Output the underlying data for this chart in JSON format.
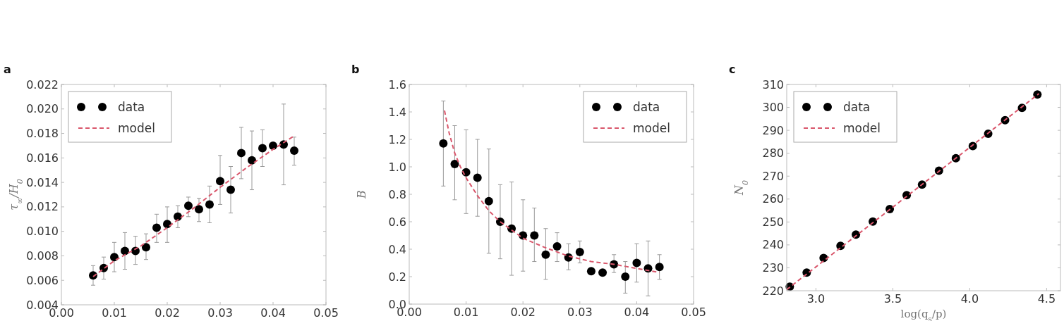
{
  "chart_data": [
    {
      "type": "scatter",
      "title": "a",
      "ylabel": "τ$_{∞}$/H$_{0}$",
      "xlim": [
        0,
        0.05
      ],
      "xticks": [
        {
          "value": 0,
          "label": "0.00"
        },
        {
          "value": 0.01,
          "label": "0.01"
        },
        {
          "value": 0.02,
          "label": "0.02"
        },
        {
          "value": 0.03,
          "label": "0.03"
        },
        {
          "value": 0.04,
          "label": "0.04"
        },
        {
          "value": 0.05,
          "label": "0.05"
        }
      ],
      "ylim": [
        0.004,
        0.022
      ],
      "yticks": [
        {
          "value": 0.004,
          "label": "0.004"
        },
        {
          "value": 0.006,
          "label": "0.006"
        },
        {
          "value": 0.008,
          "label": "0.008"
        },
        {
          "value": 0.01,
          "label": "0.010"
        },
        {
          "value": 0.012,
          "label": "0.012"
        },
        {
          "value": 0.014,
          "label": "0.014"
        },
        {
          "value": 0.016,
          "label": "0.016"
        },
        {
          "value": 0.018,
          "label": "0.018"
        },
        {
          "value": 0.02,
          "label": "0.020"
        },
        {
          "value": 0.022,
          "label": "0.022"
        }
      ],
      "legend": "top left",
      "grid": false,
      "series": [
        {
          "name": "data",
          "marker": "circle",
          "color": "#000000",
          "x": [
            0.006,
            0.008,
            0.01,
            0.012,
            0.014,
            0.016,
            0.018,
            0.02,
            0.022,
            0.024,
            0.026,
            0.028,
            0.03,
            0.032,
            0.034,
            0.036,
            0.038,
            0.04,
            0.042,
            0.044
          ],
          "values": [
            0.0064,
            0.007,
            0.0079,
            0.0084,
            0.0084,
            0.0087,
            0.0103,
            0.0106,
            0.0112,
            0.0121,
            0.0118,
            0.0122,
            0.0141,
            0.0134,
            0.0164,
            0.0158,
            0.0168,
            0.017,
            0.0171,
            0.0166
          ],
          "errors": [
            [
              0.0056,
              0.0072
            ],
            [
              0.0061,
              0.0079
            ],
            [
              0.0067,
              0.0091
            ],
            [
              0.0069,
              0.0099
            ],
            [
              0.0073,
              0.0096
            ],
            [
              0.0077,
              0.0098
            ],
            [
              0.0091,
              0.0114
            ],
            [
              0.0091,
              0.012
            ],
            [
              0.0103,
              0.0121
            ],
            [
              0.0112,
              0.0128
            ],
            [
              0.0108,
              0.0127
            ],
            [
              0.0107,
              0.0137
            ],
            [
              0.0122,
              0.0162
            ],
            [
              0.0115,
              0.0153
            ],
            [
              0.0143,
              0.0185
            ],
            [
              0.0134,
              0.0182
            ],
            [
              0.0153,
              0.0183
            ],
            null,
            [
              0.0138,
              0.0204
            ],
            [
              0.0154,
              0.0177
            ]
          ]
        },
        {
          "name": "model",
          "type": "line",
          "color": "#d9566b",
          "line_style": "dashed",
          "x": [
            0.006,
            0.01,
            0.015,
            0.02,
            0.025,
            0.03,
            0.035,
            0.04,
            0.044
          ],
          "values": [
            0.0063,
            0.0076,
            0.0088,
            0.0103,
            0.0119,
            0.0136,
            0.0152,
            0.0167,
            0.0178
          ]
        }
      ]
    },
    {
      "type": "scatter",
      "title": "b",
      "ylabel": "B",
      "xlim": [
        0,
        0.05
      ],
      "xticks": [
        {
          "value": 0,
          "label": "0.00"
        },
        {
          "value": 0.01,
          "label": "0.01"
        },
        {
          "value": 0.02,
          "label": "0.02"
        },
        {
          "value": 0.03,
          "label": "0.03"
        },
        {
          "value": 0.04,
          "label": "0.04"
        },
        {
          "value": 0.05,
          "label": "0.05"
        }
      ],
      "ylim": [
        0,
        1.6
      ],
      "yticks": [
        {
          "value": 0,
          "label": "0.0"
        },
        {
          "value": 0.2,
          "label": "0.2"
        },
        {
          "value": 0.4,
          "label": "0.4"
        },
        {
          "value": 0.6,
          "label": "0.6"
        },
        {
          "value": 0.8,
          "label": "0.8"
        },
        {
          "value": 1,
          "label": "1.0"
        },
        {
          "value": 1.2,
          "label": "1.2"
        },
        {
          "value": 1.4,
          "label": "1.4"
        },
        {
          "value": 1.6,
          "label": "1.6"
        }
      ],
      "legend": "top right",
      "grid": false,
      "series": [
        {
          "name": "data",
          "marker": "circle",
          "color": "#000000",
          "x": [
            0.006,
            0.008,
            0.01,
            0.012,
            0.014,
            0.016,
            0.018,
            0.02,
            0.022,
            0.024,
            0.026,
            0.028,
            0.03,
            0.032,
            0.034,
            0.036,
            0.038,
            0.04,
            0.042,
            0.044
          ],
          "values": [
            1.17,
            1.02,
            0.96,
            0.92,
            0.75,
            0.6,
            0.55,
            0.5,
            0.5,
            0.36,
            0.42,
            0.34,
            0.38,
            0.24,
            0.23,
            0.29,
            0.2,
            0.3,
            0.26,
            0.27
          ],
          "errors": [
            [
              0.86,
              1.48
            ],
            [
              0.76,
              1.3
            ],
            [
              0.66,
              1.27
            ],
            [
              0.64,
              1.2
            ],
            [
              0.37,
              1.13
            ],
            [
              0.33,
              0.87
            ],
            [
              0.21,
              0.89
            ],
            [
              0.24,
              0.76
            ],
            [
              0.31,
              0.7
            ],
            [
              0.18,
              0.55
            ],
            [
              0.31,
              0.52
            ],
            [
              0.25,
              0.44
            ],
            [
              0.3,
              0.46
            ],
            null,
            null,
            [
              0.23,
              0.36
            ],
            [
              0.08,
              0.31
            ],
            [
              0.16,
              0.44
            ],
            [
              0.06,
              0.46
            ],
            [
              0.18,
              0.36
            ]
          ]
        },
        {
          "name": "model",
          "type": "line",
          "color": "#d9566b",
          "line_style": "dashed",
          "x": [
            0.0062,
            0.007,
            0.008,
            0.009,
            0.01,
            0.012,
            0.014,
            0.016,
            0.018,
            0.02,
            0.024,
            0.028,
            0.032,
            0.036,
            0.04,
            0.044
          ],
          "values": [
            1.41,
            1.25,
            1.1,
            1.0,
            0.92,
            0.79,
            0.68,
            0.6,
            0.54,
            0.48,
            0.41,
            0.35,
            0.31,
            0.29,
            0.26,
            0.23
          ]
        }
      ]
    },
    {
      "type": "scatter",
      "title": "c",
      "ylabel": "N$_{0}$",
      "xlabel": "log(q$_{s}$/p)",
      "xlim": [
        2.81,
        4.59
      ],
      "xticks": [
        {
          "value": 3,
          "label": "3.0"
        },
        {
          "value": 3.5,
          "label": "3.5"
        },
        {
          "value": 4,
          "label": "4.0"
        },
        {
          "value": 4.5,
          "label": "4.5"
        }
      ],
      "ylim": [
        220,
        310
      ],
      "yticks": [
        220,
        230,
        240,
        250,
        260,
        270,
        280,
        290,
        300,
        310
      ],
      "legend": "top left",
      "grid": false,
      "series": [
        {
          "name": "data",
          "marker": "circle",
          "color": "#000000",
          "x": [
            2.83,
            2.94,
            3.05,
            3.16,
            3.26,
            3.37,
            3.48,
            3.59,
            3.69,
            3.8,
            3.91,
            4.02,
            4.12,
            4.23,
            4.34,
            4.44
          ],
          "values": [
            221.8,
            227.9,
            234.3,
            239.6,
            244.5,
            250.2,
            255.6,
            261.7,
            266.3,
            272.4,
            277.8,
            283.1,
            288.5,
            294.4,
            299.8,
            305.6
          ]
        },
        {
          "name": "model",
          "type": "line",
          "color": "#d9566b",
          "line_style": "dashed",
          "x": [
            2.81,
            4.45
          ],
          "values": [
            220.5,
            306
          ]
        }
      ]
    }
  ]
}
